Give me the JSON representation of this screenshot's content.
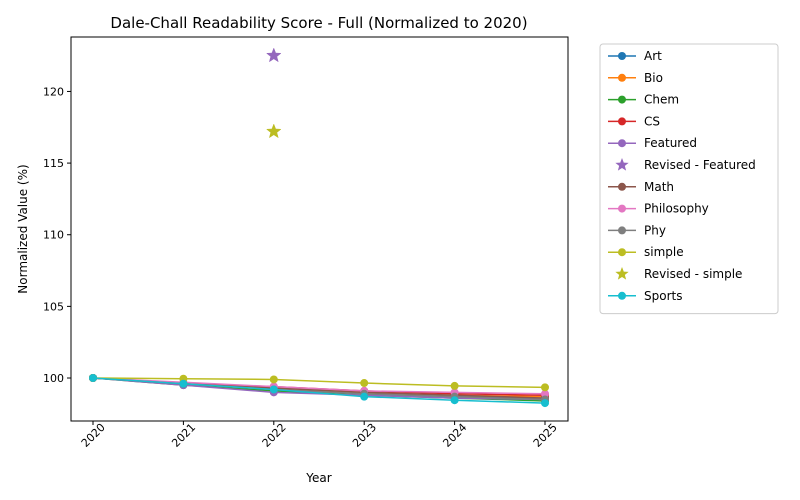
{
  "chart_data": {
    "type": "line",
    "title": "Dale-Chall Readability Score - Full (Normalized to 2020)",
    "xlabel": "Year",
    "ylabel": "Normalized Value (%)",
    "x": [
      "2020",
      "2021",
      "2022",
      "2023",
      "2024",
      "2025"
    ],
    "yticks": [
      100,
      105,
      110,
      115,
      120
    ],
    "ylim": [
      97.0,
      123.8
    ],
    "legend_position": "outside-right",
    "grid": false,
    "series": [
      {
        "name": "Art",
        "color": "#1f77b4",
        "marker": "circle",
        "values": [
          100,
          99.6,
          99.2,
          98.9,
          98.7,
          98.6
        ]
      },
      {
        "name": "Bio",
        "color": "#ff7f0e",
        "marker": "circle",
        "values": [
          100,
          99.6,
          99.3,
          99.0,
          98.8,
          98.7
        ]
      },
      {
        "name": "Chem",
        "color": "#2ca02c",
        "marker": "circle",
        "values": [
          100,
          99.5,
          99.1,
          98.8,
          98.6,
          98.4
        ]
      },
      {
        "name": "CS",
        "color": "#d62728",
        "marker": "circle",
        "values": [
          100,
          99.6,
          99.4,
          99.1,
          98.9,
          98.8
        ]
      },
      {
        "name": "Featured",
        "color": "#9467bd",
        "marker": "circle",
        "values": [
          100,
          99.5,
          99.0,
          98.8,
          98.6,
          98.5
        ]
      },
      {
        "name": "Revised - Featured",
        "color": "#9467bd",
        "marker": "star",
        "points": [
          {
            "x": "2022",
            "y": 122.5
          }
        ]
      },
      {
        "name": "Math",
        "color": "#8c564b",
        "marker": "circle",
        "values": [
          100,
          99.6,
          99.3,
          99.0,
          98.8,
          98.6
        ]
      },
      {
        "name": "Philosophy",
        "color": "#e377c2",
        "marker": "circle",
        "values": [
          100,
          99.7,
          99.4,
          99.1,
          99.0,
          98.9
        ]
      },
      {
        "name": "Phy",
        "color": "#7f7f7f",
        "marker": "circle",
        "values": [
          100,
          99.6,
          99.2,
          98.9,
          98.7,
          98.5
        ]
      },
      {
        "name": "simple",
        "color": "#bcbd22",
        "marker": "circle",
        "values": [
          100,
          99.95,
          99.9,
          99.65,
          99.45,
          99.35
        ]
      },
      {
        "name": "Revised - simple",
        "color": "#bcbd22",
        "marker": "star",
        "points": [
          {
            "x": "2022",
            "y": 117.2
          }
        ]
      },
      {
        "name": "Sports",
        "color": "#17becf",
        "marker": "circle",
        "values": [
          100,
          99.6,
          99.2,
          98.7,
          98.45,
          98.25
        ]
      }
    ]
  }
}
